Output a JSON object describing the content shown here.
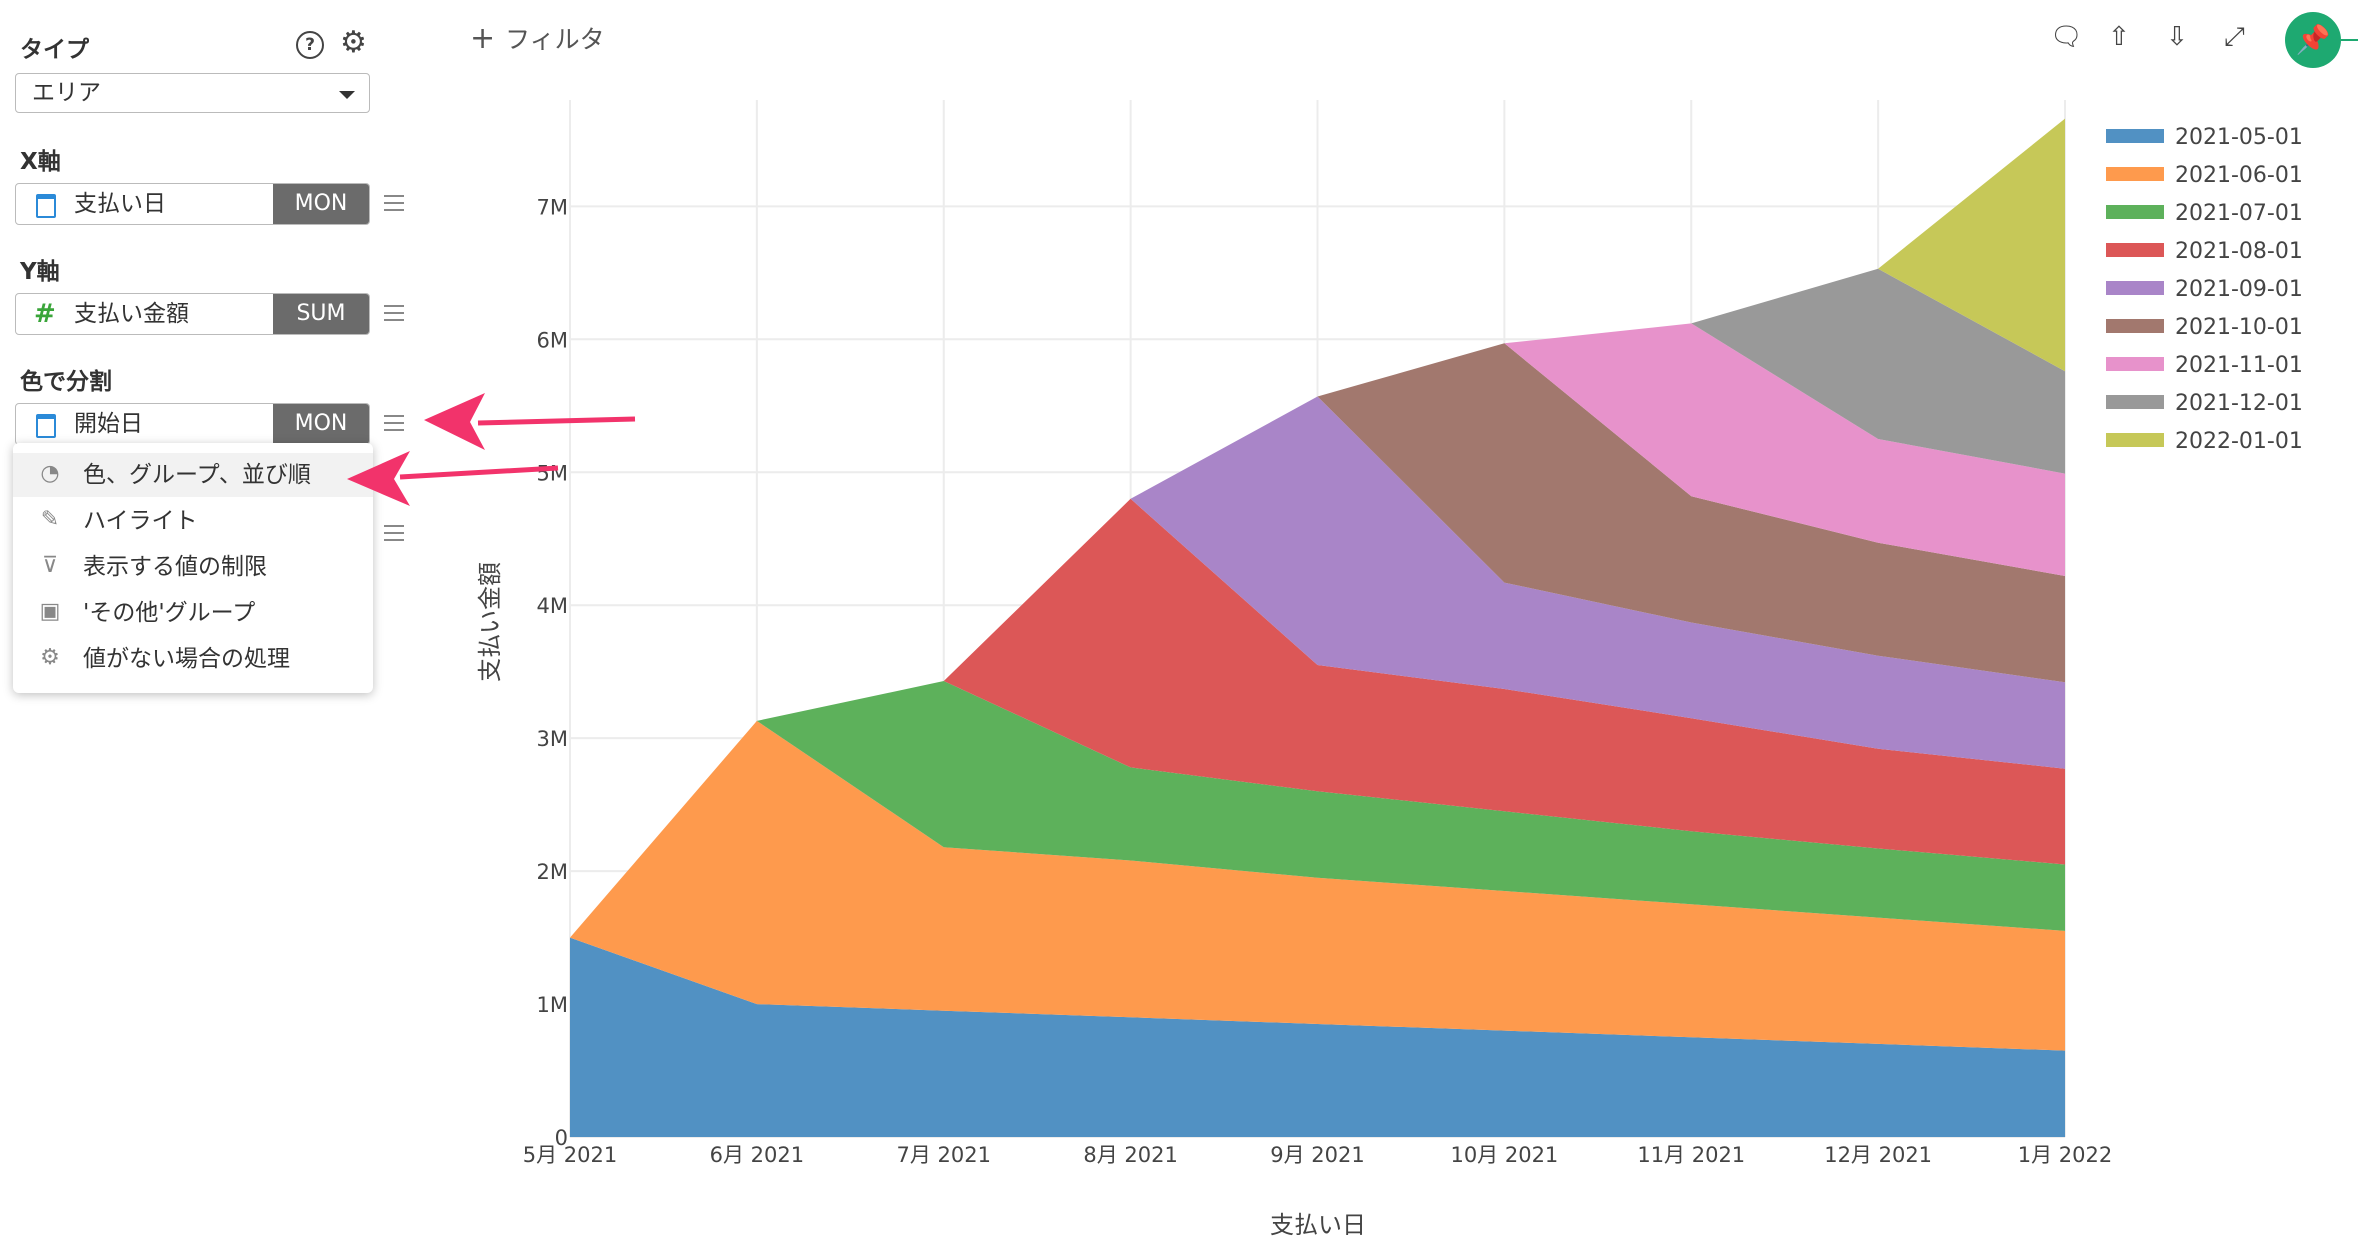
{
  "sidebar": {
    "type_label": "タイプ",
    "help_icon": "?",
    "type_value": "エリア",
    "x_axis_label": "X軸",
    "x_field": {
      "name": "支払い日",
      "agg": "MON",
      "icon": "calendar-icon"
    },
    "y_axis_label": "Y軸",
    "y_field": {
      "name": "支払い金額",
      "agg": "SUM",
      "icon": "#"
    },
    "color_label": "色で分割",
    "color_field": {
      "name": "開始日",
      "agg": "MON",
      "icon": "calendar-icon"
    },
    "menu": [
      {
        "label": "色、グループ、並び順",
        "icon": "palette-icon"
      },
      {
        "label": "ハイライト",
        "icon": "pen-icon"
      },
      {
        "label": "表示する値の制限",
        "icon": "filter-icon"
      },
      {
        "label": "'その他'グループ",
        "icon": "group-icon"
      },
      {
        "label": "値がない場合の処理",
        "icon": "gear-icon"
      }
    ]
  },
  "toolbar": {
    "filter_label": "フィルタ",
    "plus": "+"
  },
  "colors": {
    "accent": "#1ea971",
    "arrow": "#f2336b"
  },
  "chart_data": {
    "type": "area",
    "stacked": true,
    "categories": [
      "5月 2021",
      "6月 2021",
      "7月 2021",
      "8月 2021",
      "9月 2021",
      "10月 2021",
      "11月 2021",
      "12月 2021",
      "1月 2022"
    ],
    "xlabel": "支払い日",
    "ylabel": "支払い金額",
    "ylim": [
      0,
      7800000
    ],
    "yticks": [
      0,
      1000000,
      2000000,
      3000000,
      4000000,
      5000000,
      6000000,
      7000000
    ],
    "ytick_labels": [
      "0",
      "1M",
      "2M",
      "3M",
      "4M",
      "5M",
      "6M",
      "7M"
    ],
    "grid": true,
    "legend": "right",
    "series": [
      {
        "name": "2021-05-01",
        "color": "#5191c3",
        "values": [
          1500000,
          1000000,
          950000,
          900000,
          850000,
          800000,
          750000,
          700000,
          650000
        ]
      },
      {
        "name": "2021-06-01",
        "color": "#fe9a4d",
        "values": [
          0,
          2130000,
          1230000,
          1180000,
          1100000,
          1050000,
          1000000,
          950000,
          900000
        ]
      },
      {
        "name": "2021-07-01",
        "color": "#5db15b",
        "values": [
          0,
          0,
          1250000,
          700000,
          650000,
          600000,
          550000,
          520000,
          500000
        ]
      },
      {
        "name": "2021-08-01",
        "color": "#dc5757",
        "values": [
          0,
          0,
          0,
          2020000,
          950000,
          920000,
          850000,
          750000,
          720000
        ]
      },
      {
        "name": "2021-09-01",
        "color": "#a985c8",
        "values": [
          0,
          0,
          0,
          0,
          2020000,
          800000,
          720000,
          700000,
          650000
        ]
      },
      {
        "name": "2021-10-01",
        "color": "#a2786e",
        "values": [
          0,
          0,
          0,
          0,
          0,
          1800000,
          950000,
          850000,
          800000
        ]
      },
      {
        "name": "2021-11-01",
        "color": "#e792cb",
        "values": [
          0,
          0,
          0,
          0,
          0,
          0,
          1300000,
          780000,
          770000
        ]
      },
      {
        "name": "2021-12-01",
        "color": "#999999",
        "values": [
          0,
          0,
          0,
          0,
          0,
          0,
          0,
          1280000,
          770000
        ]
      },
      {
        "name": "2022-01-01",
        "color": "#c6c858",
        "values": [
          0,
          0,
          0,
          0,
          0,
          0,
          0,
          0,
          1900000
        ]
      }
    ]
  }
}
